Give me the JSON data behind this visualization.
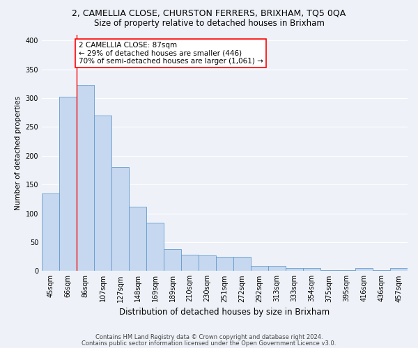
{
  "title1": "2, CAMELLIA CLOSE, CHURSTON FERRERS, BRIXHAM, TQ5 0QA",
  "title2": "Size of property relative to detached houses in Brixham",
  "xlabel": "Distribution of detached houses by size in Brixham",
  "ylabel": "Number of detached properties",
  "categories": [
    "45sqm",
    "66sqm",
    "86sqm",
    "107sqm",
    "127sqm",
    "148sqm",
    "169sqm",
    "189sqm",
    "210sqm",
    "230sqm",
    "251sqm",
    "272sqm",
    "292sqm",
    "313sqm",
    "333sqm",
    "354sqm",
    "375sqm",
    "395sqm",
    "416sqm",
    "436sqm",
    "457sqm"
  ],
  "values": [
    134,
    303,
    323,
    270,
    181,
    112,
    84,
    38,
    28,
    27,
    24,
    24,
    9,
    9,
    5,
    5,
    2,
    2,
    5,
    2,
    5
  ],
  "bar_color": "#c5d8ef",
  "bar_edge_color": "#6699cc",
  "red_line_x": 1.5,
  "annotation_text": "2 CAMELLIA CLOSE: 87sqm\n← 29% of detached houses are smaller (446)\n70% of semi-detached houses are larger (1,061) →",
  "annotation_box_color": "white",
  "annotation_box_edge_color": "red",
  "ylim": [
    0,
    410
  ],
  "yticks": [
    0,
    50,
    100,
    150,
    200,
    250,
    300,
    350,
    400
  ],
  "footer1": "Contains HM Land Registry data © Crown copyright and database right 2024.",
  "footer2": "Contains public sector information licensed under the Open Government Licence v3.0.",
  "background_color": "#eef2f8",
  "grid_color": "#ffffff",
  "title1_fontsize": 9,
  "title2_fontsize": 8.5,
  "xlabel_fontsize": 8.5,
  "ylabel_fontsize": 7.5,
  "tick_fontsize": 7,
  "footer_fontsize": 6,
  "annot_fontsize": 7.5
}
